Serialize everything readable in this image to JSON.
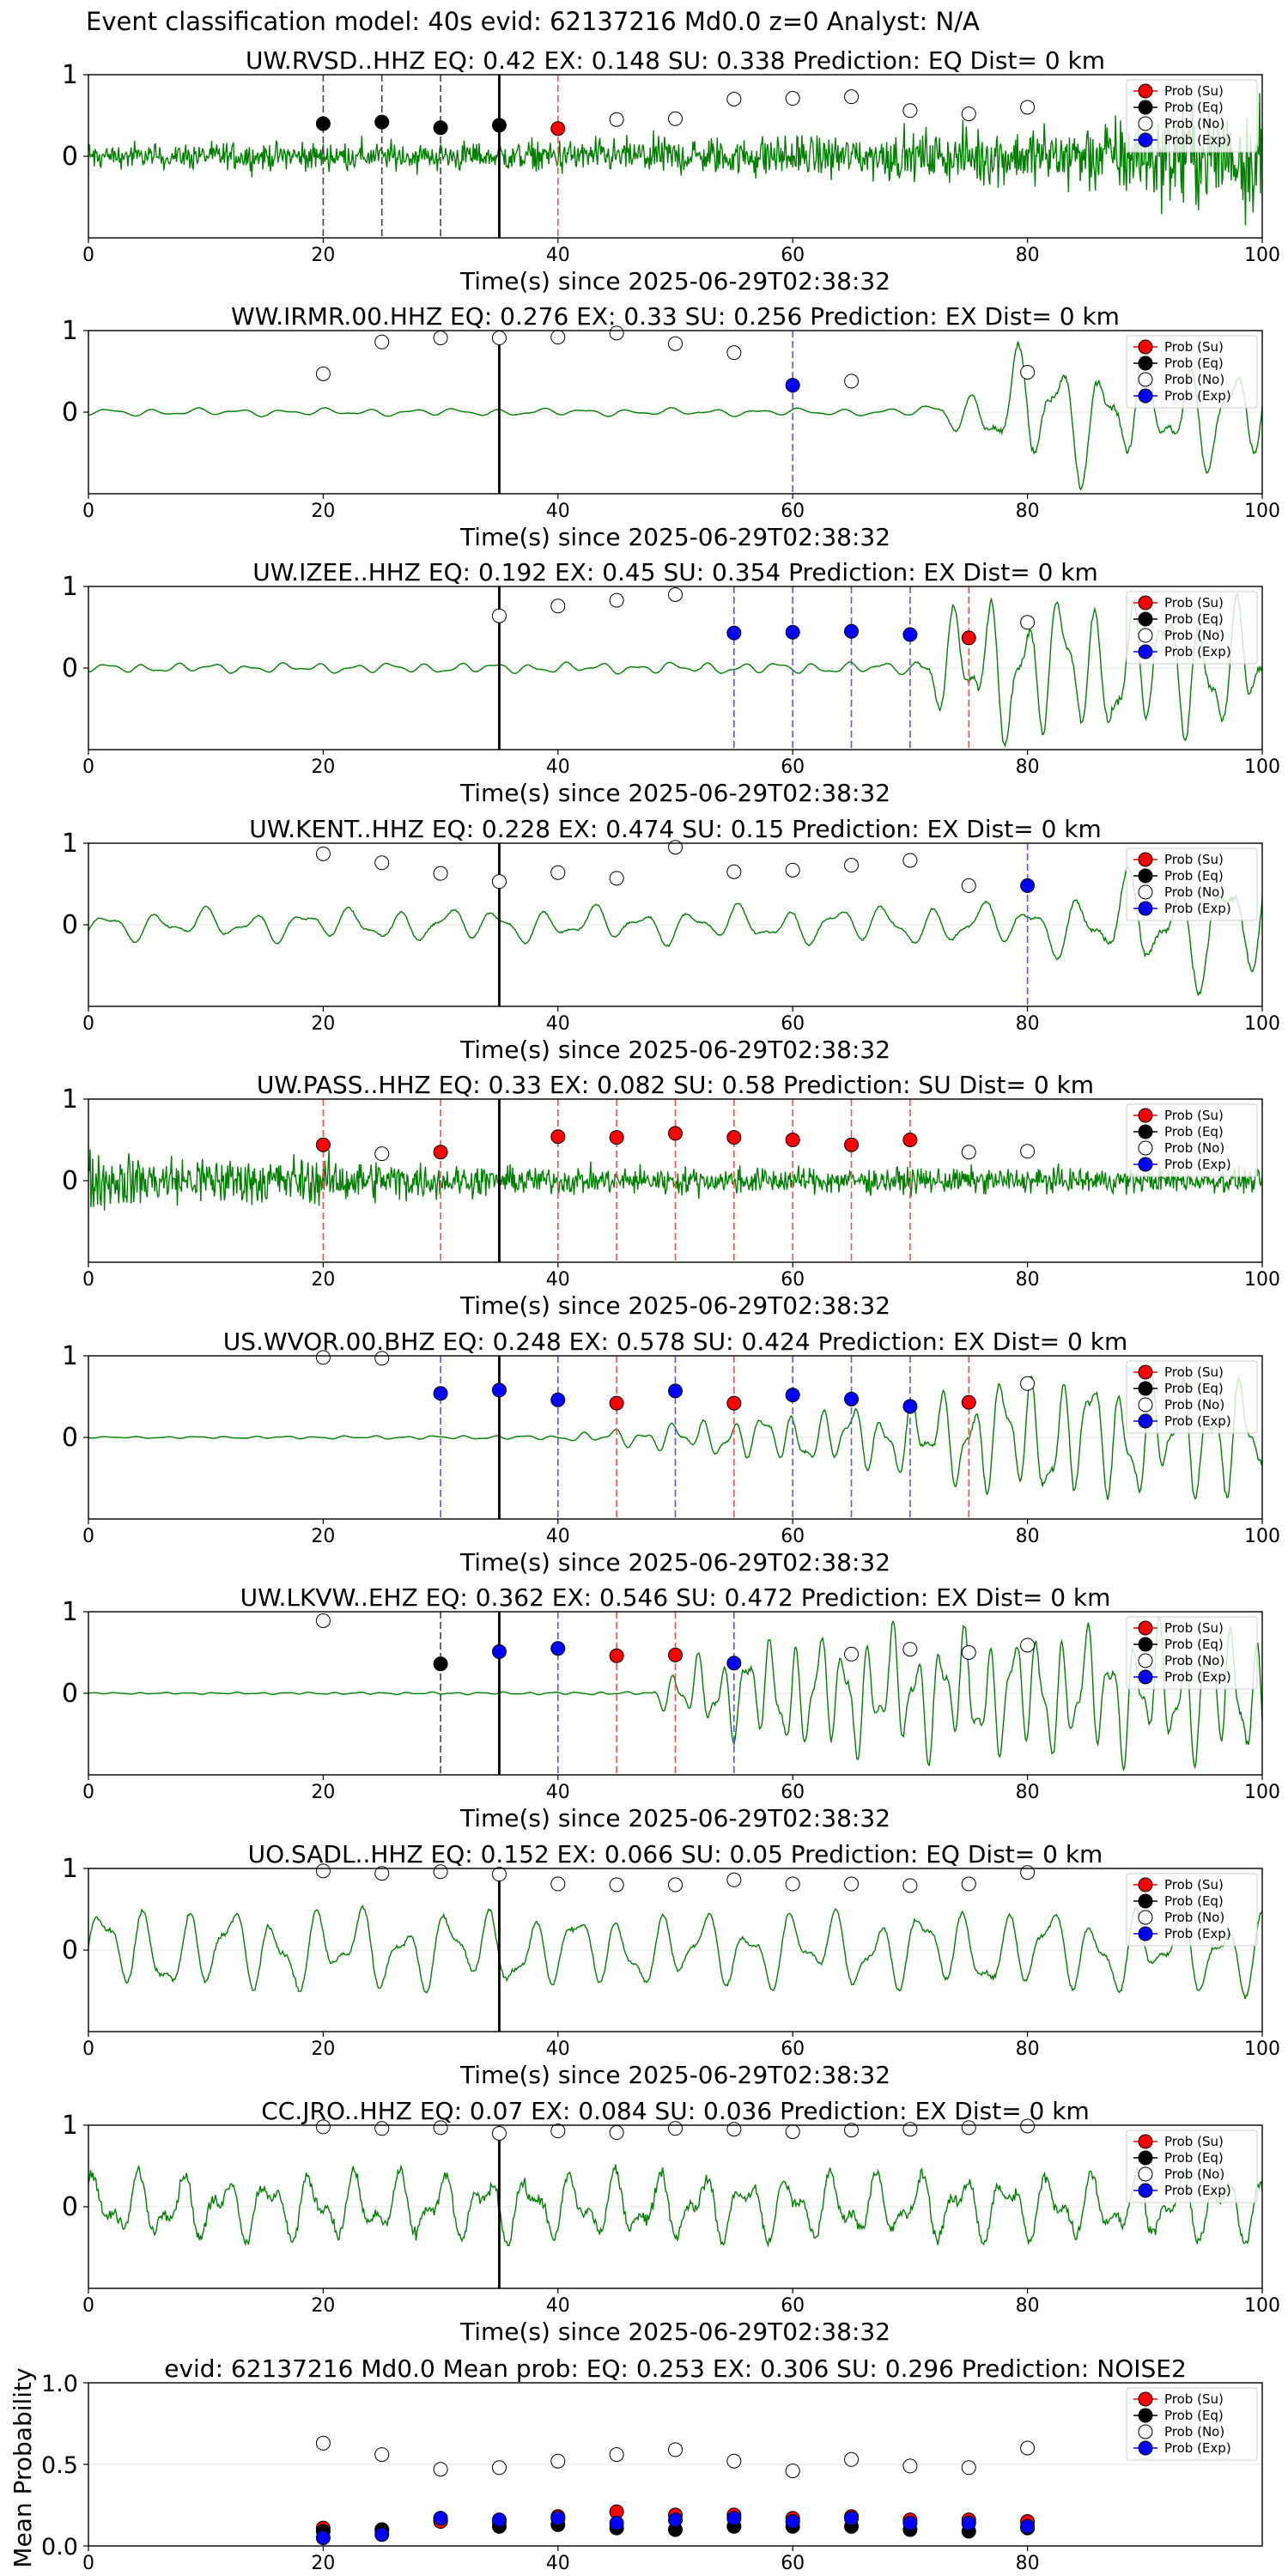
{
  "figure_title": "Event classification model: 40s evid: 62137216 Md0.0 z=0 Analyst: N/A",
  "legend_labels": [
    "Prob (Su)",
    "Prob (Eq)",
    "Prob (No)",
    "Prob (Exp)"
  ],
  "colors": {
    "su": "#ff0000",
    "eq": "#000000",
    "no": "#ffffff",
    "exp": "#0000ff",
    "trace": "#008000"
  },
  "chart_data": [
    {
      "type": "line",
      "title": "UW.RVSD..HHZ   EQ: 0.42  EX: 0.148  SU: 0.338   Prediction: EQ    Dist= 0 km",
      "xlabel": "Time(s) since 2025-06-29T02:38:32",
      "xlim": [
        0,
        100
      ],
      "ylim": [
        -1,
        1
      ],
      "xticks": [
        0,
        20,
        40,
        60,
        80,
        100
      ],
      "yticks": [
        0,
        1
      ],
      "arrival": 35,
      "markers": [
        {
          "x": 20,
          "y": 0.4,
          "cls": "eq",
          "line": true
        },
        {
          "x": 25,
          "y": 0.42,
          "cls": "eq",
          "line": true
        },
        {
          "x": 30,
          "y": 0.35,
          "cls": "eq",
          "line": true
        },
        {
          "x": 35,
          "y": 0.38,
          "cls": "eq",
          "line": false
        },
        {
          "x": 40,
          "y": 0.34,
          "cls": "su",
          "line": true
        },
        {
          "x": 45,
          "y": 0.45,
          "cls": "no",
          "line": false
        },
        {
          "x": 50,
          "y": 0.46,
          "cls": "no",
          "line": false
        },
        {
          "x": 55,
          "y": 0.7,
          "cls": "no",
          "line": false
        },
        {
          "x": 60,
          "y": 0.71,
          "cls": "no",
          "line": false
        },
        {
          "x": 65,
          "y": 0.73,
          "cls": "no",
          "line": false
        },
        {
          "x": 70,
          "y": 0.56,
          "cls": "no",
          "line": false
        },
        {
          "x": 75,
          "y": 0.52,
          "cls": "no",
          "line": false
        },
        {
          "x": 80,
          "y": 0.6,
          "cls": "no",
          "line": false
        }
      ]
    },
    {
      "type": "line",
      "title": "WW.IRMR.00.HHZ   EQ: 0.276  EX: 0.33  SU: 0.256   Prediction: EX    Dist= 0 km",
      "xlabel": "Time(s) since 2025-06-29T02:38:32",
      "xlim": [
        0,
        100
      ],
      "ylim": [
        -1,
        1
      ],
      "xticks": [
        0,
        20,
        40,
        60,
        80,
        100
      ],
      "yticks": [
        0,
        1
      ],
      "arrival": 35,
      "markers": [
        {
          "x": 20,
          "y": 0.47,
          "cls": "no",
          "line": false
        },
        {
          "x": 25,
          "y": 0.86,
          "cls": "no",
          "line": false
        },
        {
          "x": 30,
          "y": 0.91,
          "cls": "no",
          "line": false
        },
        {
          "x": 35,
          "y": 0.91,
          "cls": "no",
          "line": false
        },
        {
          "x": 40,
          "y": 0.92,
          "cls": "no",
          "line": false
        },
        {
          "x": 45,
          "y": 0.97,
          "cls": "no",
          "line": false
        },
        {
          "x": 50,
          "y": 0.84,
          "cls": "no",
          "line": false
        },
        {
          "x": 55,
          "y": 0.73,
          "cls": "no",
          "line": false
        },
        {
          "x": 60,
          "y": 0.33,
          "cls": "exp",
          "line": true
        },
        {
          "x": 65,
          "y": 0.38,
          "cls": "no",
          "line": false
        },
        {
          "x": 80,
          "y": 0.49,
          "cls": "no",
          "line": false
        }
      ]
    },
    {
      "type": "line",
      "title": "UW.IZEE..HHZ   EQ: 0.192  EX: 0.45  SU: 0.354   Prediction: EX    Dist= 0 km",
      "xlabel": "Time(s) since 2025-06-29T02:38:32",
      "xlim": [
        0,
        100
      ],
      "ylim": [
        -1,
        1
      ],
      "xticks": [
        0,
        20,
        40,
        60,
        80,
        100
      ],
      "yticks": [
        0,
        1
      ],
      "arrival": 35,
      "markers": [
        {
          "x": 35,
          "y": 0.64,
          "cls": "no",
          "line": false
        },
        {
          "x": 40,
          "y": 0.76,
          "cls": "no",
          "line": false
        },
        {
          "x": 45,
          "y": 0.83,
          "cls": "no",
          "line": false
        },
        {
          "x": 50,
          "y": 0.9,
          "cls": "no",
          "line": false
        },
        {
          "x": 55,
          "y": 0.43,
          "cls": "exp",
          "line": true
        },
        {
          "x": 60,
          "y": 0.44,
          "cls": "exp",
          "line": true
        },
        {
          "x": 65,
          "y": 0.45,
          "cls": "exp",
          "line": true
        },
        {
          "x": 70,
          "y": 0.41,
          "cls": "exp",
          "line": true
        },
        {
          "x": 75,
          "y": 0.37,
          "cls": "su",
          "line": true
        },
        {
          "x": 80,
          "y": 0.56,
          "cls": "no",
          "line": false
        }
      ]
    },
    {
      "type": "line",
      "title": "UW.KENT..HHZ   EQ: 0.228  EX: 0.474  SU: 0.15   Prediction: EX    Dist= 0 km",
      "xlabel": "Time(s) since 2025-06-29T02:38:32",
      "xlim": [
        0,
        100
      ],
      "ylim": [
        -1,
        1
      ],
      "xticks": [
        0,
        20,
        40,
        60,
        80,
        100
      ],
      "yticks": [
        0,
        1
      ],
      "arrival": 35,
      "markers": [
        {
          "x": 20,
          "y": 0.87,
          "cls": "no",
          "line": false
        },
        {
          "x": 25,
          "y": 0.76,
          "cls": "no",
          "line": false
        },
        {
          "x": 30,
          "y": 0.63,
          "cls": "no",
          "line": false
        },
        {
          "x": 35,
          "y": 0.53,
          "cls": "no",
          "line": false
        },
        {
          "x": 40,
          "y": 0.64,
          "cls": "no",
          "line": false
        },
        {
          "x": 45,
          "y": 0.57,
          "cls": "no",
          "line": false
        },
        {
          "x": 50,
          "y": 0.95,
          "cls": "no",
          "line": false
        },
        {
          "x": 55,
          "y": 0.65,
          "cls": "no",
          "line": false
        },
        {
          "x": 60,
          "y": 0.67,
          "cls": "no",
          "line": false
        },
        {
          "x": 65,
          "y": 0.73,
          "cls": "no",
          "line": false
        },
        {
          "x": 70,
          "y": 0.79,
          "cls": "no",
          "line": false
        },
        {
          "x": 75,
          "y": 0.48,
          "cls": "no",
          "line": false
        },
        {
          "x": 80,
          "y": 0.48,
          "cls": "exp",
          "line": true
        }
      ]
    },
    {
      "type": "line",
      "title": "UW.PASS..HHZ   EQ: 0.33  EX: 0.082  SU: 0.58   Prediction: SU    Dist= 0 km",
      "xlabel": "Time(s) since 2025-06-29T02:38:32",
      "xlim": [
        0,
        100
      ],
      "ylim": [
        -1,
        1
      ],
      "xticks": [
        0,
        20,
        40,
        60,
        80,
        100
      ],
      "yticks": [
        0,
        1
      ],
      "arrival": 35,
      "markers": [
        {
          "x": 20,
          "y": 0.44,
          "cls": "su",
          "line": true
        },
        {
          "x": 25,
          "y": 0.33,
          "cls": "no",
          "line": false
        },
        {
          "x": 30,
          "y": 0.35,
          "cls": "su",
          "line": true
        },
        {
          "x": 40,
          "y": 0.54,
          "cls": "su",
          "line": true
        },
        {
          "x": 45,
          "y": 0.53,
          "cls": "su",
          "line": true
        },
        {
          "x": 50,
          "y": 0.58,
          "cls": "su",
          "line": true
        },
        {
          "x": 55,
          "y": 0.53,
          "cls": "su",
          "line": true
        },
        {
          "x": 60,
          "y": 0.5,
          "cls": "su",
          "line": true
        },
        {
          "x": 65,
          "y": 0.44,
          "cls": "su",
          "line": true
        },
        {
          "x": 70,
          "y": 0.5,
          "cls": "su",
          "line": true
        },
        {
          "x": 75,
          "y": 0.35,
          "cls": "no",
          "line": false
        },
        {
          "x": 80,
          "y": 0.36,
          "cls": "no",
          "line": false
        }
      ]
    },
    {
      "type": "line",
      "title": "US.WVOR.00.BHZ   EQ: 0.248  EX: 0.578  SU: 0.424   Prediction: EX    Dist= 0 km",
      "xlabel": "Time(s) since 2025-06-29T02:38:32",
      "xlim": [
        0,
        100
      ],
      "ylim": [
        -1,
        1
      ],
      "xticks": [
        0,
        20,
        40,
        60,
        80,
        100
      ],
      "yticks": [
        0,
        1
      ],
      "arrival": 35,
      "markers": [
        {
          "x": 20,
          "y": 0.98,
          "cls": "no",
          "line": false
        },
        {
          "x": 25,
          "y": 0.97,
          "cls": "no",
          "line": false
        },
        {
          "x": 30,
          "y": 0.54,
          "cls": "exp",
          "line": true
        },
        {
          "x": 35,
          "y": 0.58,
          "cls": "exp",
          "line": false
        },
        {
          "x": 40,
          "y": 0.46,
          "cls": "exp",
          "line": true
        },
        {
          "x": 45,
          "y": 0.42,
          "cls": "su",
          "line": true
        },
        {
          "x": 50,
          "y": 0.57,
          "cls": "exp",
          "line": true
        },
        {
          "x": 55,
          "y": 0.42,
          "cls": "su",
          "line": true
        },
        {
          "x": 60,
          "y": 0.52,
          "cls": "exp",
          "line": true
        },
        {
          "x": 65,
          "y": 0.47,
          "cls": "exp",
          "line": true
        },
        {
          "x": 70,
          "y": 0.38,
          "cls": "exp",
          "line": true
        },
        {
          "x": 75,
          "y": 0.43,
          "cls": "su",
          "line": true
        },
        {
          "x": 80,
          "y": 0.66,
          "cls": "no",
          "line": false
        }
      ]
    },
    {
      "type": "line",
      "title": "UW.LKVW..EHZ   EQ: 0.362  EX: 0.546  SU: 0.472   Prediction: EX    Dist= 0 km",
      "xlabel": "Time(s) since 2025-06-29T02:38:32",
      "xlim": [
        0,
        100
      ],
      "ylim": [
        -1,
        1
      ],
      "xticks": [
        0,
        20,
        40,
        60,
        80,
        100
      ],
      "yticks": [
        0,
        1
      ],
      "arrival": 35,
      "markers": [
        {
          "x": 20,
          "y": 0.89,
          "cls": "no",
          "line": false
        },
        {
          "x": 30,
          "y": 0.36,
          "cls": "eq",
          "line": true
        },
        {
          "x": 35,
          "y": 0.51,
          "cls": "exp",
          "line": false
        },
        {
          "x": 40,
          "y": 0.55,
          "cls": "exp",
          "line": true
        },
        {
          "x": 45,
          "y": 0.46,
          "cls": "su",
          "line": true
        },
        {
          "x": 50,
          "y": 0.47,
          "cls": "su",
          "line": true
        },
        {
          "x": 55,
          "y": 0.37,
          "cls": "exp",
          "line": true
        },
        {
          "x": 65,
          "y": 0.48,
          "cls": "no",
          "line": false
        },
        {
          "x": 70,
          "y": 0.54,
          "cls": "no",
          "line": false
        },
        {
          "x": 75,
          "y": 0.5,
          "cls": "no",
          "line": false
        },
        {
          "x": 80,
          "y": 0.59,
          "cls": "no",
          "line": false
        }
      ]
    },
    {
      "type": "line",
      "title": "UO.SADL..HHZ   EQ: 0.152  EX: 0.066  SU: 0.05   Prediction: EQ    Dist= 0 km",
      "xlabel": "Time(s) since 2025-06-29T02:38:32",
      "xlim": [
        0,
        100
      ],
      "ylim": [
        -1,
        1
      ],
      "xticks": [
        0,
        20,
        40,
        60,
        80,
        100
      ],
      "yticks": [
        0,
        1
      ],
      "arrival": 35,
      "markers": [
        {
          "x": 20,
          "y": 0.97,
          "cls": "no",
          "line": false
        },
        {
          "x": 25,
          "y": 0.94,
          "cls": "no",
          "line": false
        },
        {
          "x": 30,
          "y": 0.96,
          "cls": "no",
          "line": false
        },
        {
          "x": 35,
          "y": 0.93,
          "cls": "no",
          "line": false
        },
        {
          "x": 40,
          "y": 0.81,
          "cls": "no",
          "line": false
        },
        {
          "x": 45,
          "y": 0.8,
          "cls": "no",
          "line": false
        },
        {
          "x": 50,
          "y": 0.8,
          "cls": "no",
          "line": false
        },
        {
          "x": 55,
          "y": 0.86,
          "cls": "no",
          "line": false
        },
        {
          "x": 60,
          "y": 0.81,
          "cls": "no",
          "line": false
        },
        {
          "x": 65,
          "y": 0.81,
          "cls": "no",
          "line": false
        },
        {
          "x": 70,
          "y": 0.79,
          "cls": "no",
          "line": false
        },
        {
          "x": 75,
          "y": 0.81,
          "cls": "no",
          "line": false
        },
        {
          "x": 80,
          "y": 0.95,
          "cls": "no",
          "line": false
        }
      ]
    },
    {
      "type": "line",
      "title": "CC.JRO..HHZ   EQ: 0.07  EX: 0.084  SU: 0.036   Prediction: EX    Dist= 0 km",
      "xlabel": "Time(s) since 2025-06-29T02:38:32",
      "xlim": [
        0,
        100
      ],
      "ylim": [
        -1,
        1
      ],
      "xticks": [
        0,
        20,
        40,
        60,
        80,
        100
      ],
      "yticks": [
        0,
        1
      ],
      "arrival": 35,
      "markers": [
        {
          "x": 20,
          "y": 0.98,
          "cls": "no",
          "line": false
        },
        {
          "x": 25,
          "y": 0.96,
          "cls": "no",
          "line": false
        },
        {
          "x": 30,
          "y": 0.97,
          "cls": "no",
          "line": false
        },
        {
          "x": 35,
          "y": 0.9,
          "cls": "no",
          "line": false
        },
        {
          "x": 40,
          "y": 0.93,
          "cls": "no",
          "line": false
        },
        {
          "x": 45,
          "y": 0.91,
          "cls": "no",
          "line": false
        },
        {
          "x": 50,
          "y": 0.96,
          "cls": "no",
          "line": false
        },
        {
          "x": 55,
          "y": 0.95,
          "cls": "no",
          "line": false
        },
        {
          "x": 60,
          "y": 0.92,
          "cls": "no",
          "line": false
        },
        {
          "x": 65,
          "y": 0.94,
          "cls": "no",
          "line": false
        },
        {
          "x": 70,
          "y": 0.95,
          "cls": "no",
          "line": false
        },
        {
          "x": 75,
          "y": 0.97,
          "cls": "no",
          "line": false
        },
        {
          "x": 80,
          "y": 0.99,
          "cls": "no",
          "line": false
        }
      ]
    },
    {
      "type": "scatter",
      "title": "evid: 62137216  Md0.0   Mean prob:    EQ: 0.253  EX: 0.306  SU: 0.296   Prediction: NOISE2",
      "xlabel": "",
      "ylabel": "Mean Probability",
      "xlim": [
        0,
        100
      ],
      "ylim": [
        0,
        1
      ],
      "xticks": [
        0,
        20,
        40,
        60,
        80
      ],
      "yticks": [
        0.0,
        0.5,
        1.0
      ],
      "yticklabels": [
        "0.0",
        "0.5",
        "1.0"
      ],
      "x": [
        20,
        25,
        30,
        35,
        40,
        45,
        50,
        55,
        60,
        65,
        70,
        75,
        80
      ],
      "series": [
        {
          "name": "Prob (Su)",
          "cls": "su",
          "values": [
            0.11,
            0.1,
            0.15,
            0.15,
            0.18,
            0.21,
            0.19,
            0.19,
            0.17,
            0.18,
            0.16,
            0.16,
            0.15
          ]
        },
        {
          "name": "Prob (Eq)",
          "cls": "eq",
          "values": [
            0.09,
            0.1,
            0.17,
            0.12,
            0.13,
            0.11,
            0.1,
            0.12,
            0.12,
            0.12,
            0.1,
            0.09,
            0.11
          ]
        },
        {
          "name": "Prob (No)",
          "cls": "no",
          "values": [
            0.63,
            0.56,
            0.47,
            0.48,
            0.52,
            0.56,
            0.59,
            0.52,
            0.46,
            0.53,
            0.49,
            0.48,
            0.6
          ]
        },
        {
          "name": "Prob (Exp)",
          "cls": "exp",
          "values": [
            0.05,
            0.07,
            0.17,
            0.16,
            0.17,
            0.14,
            0.16,
            0.17,
            0.15,
            0.17,
            0.14,
            0.14,
            0.12
          ]
        }
      ]
    }
  ]
}
